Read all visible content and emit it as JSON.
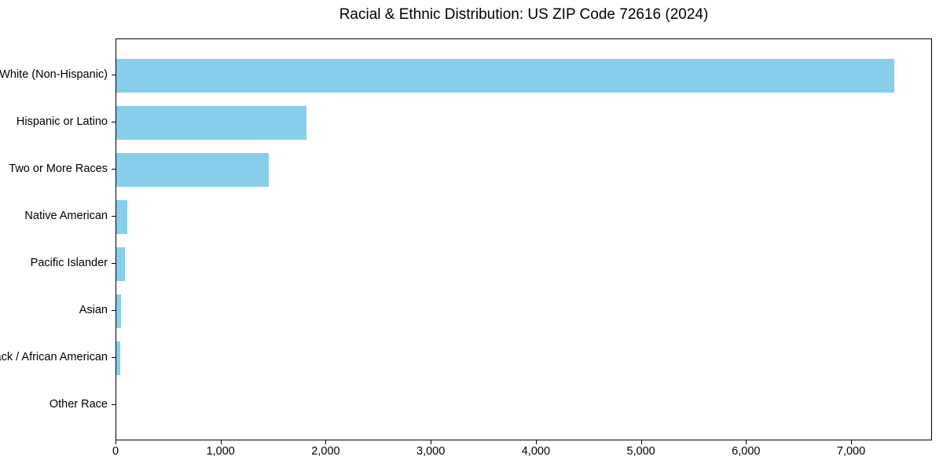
{
  "chart_data": {
    "type": "bar",
    "orientation": "horizontal",
    "title": "Racial & Ethnic Distribution: US ZIP Code 72616 (2024)",
    "categories": [
      "White (Non-Hispanic)",
      "Hispanic or Latino",
      "Two or More Races",
      "Native American",
      "Pacific Islander",
      "Asian",
      "Black / African American",
      "Other Race"
    ],
    "values": [
      7400,
      1810,
      1450,
      105,
      85,
      45,
      35,
      0
    ],
    "title_text": "Racial & Ethnic Distribution: US ZIP Code 72616 (2024)",
    "xlabel": "",
    "ylabel": "",
    "xlim": [
      0,
      7770
    ],
    "x_ticks": [
      0,
      1000,
      2000,
      3000,
      4000,
      5000,
      6000,
      7000
    ],
    "x_tick_labels": [
      "0",
      "1,000",
      "2,000",
      "3,000",
      "4,000",
      "5,000",
      "6,000",
      "7,000"
    ],
    "bar_color": "#87CEEB",
    "axis_color": "#000000",
    "background_color": "#ffffff",
    "grid": false,
    "legend": null
  }
}
